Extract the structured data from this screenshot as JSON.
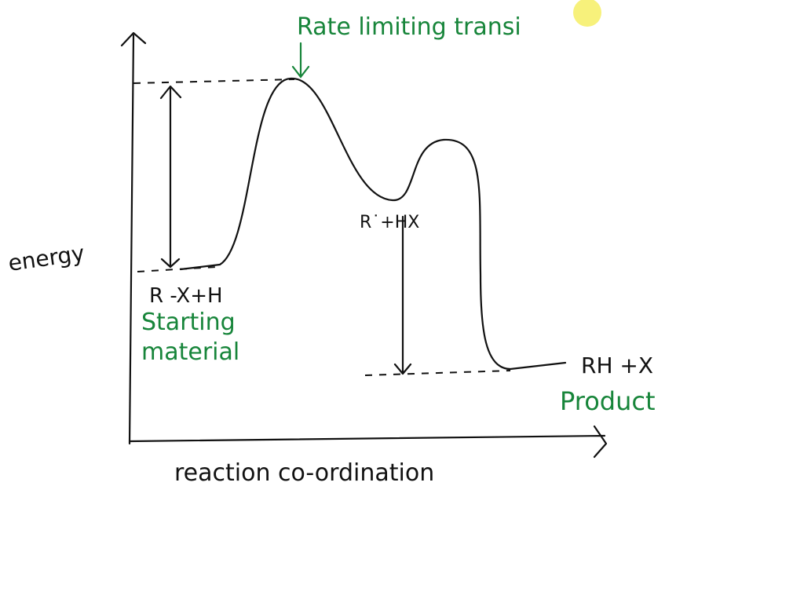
{
  "title": "Rate limiting transi",
  "axes": {
    "y_label": "energy",
    "x_label": "reaction co-ordination"
  },
  "labels": {
    "start": "R -X+H",
    "start_note": [
      "Starting",
      "material"
    ],
    "intermediate": "R˙+HX",
    "product": "RH +X",
    "product_note": "Product"
  }
}
